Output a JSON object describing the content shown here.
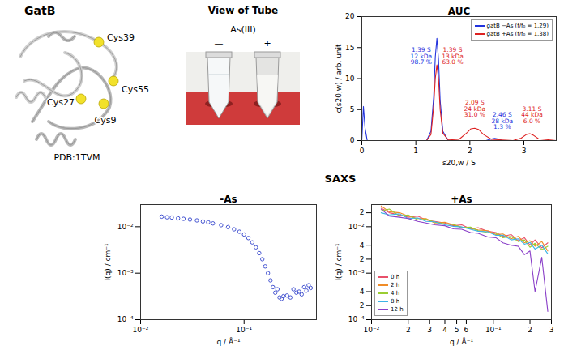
{
  "figure": {
    "structure": {
      "title": "GatB",
      "labels": [
        "Cys39",
        "Cys27",
        "Cys9",
        "Cys55"
      ],
      "caption": "PDB:1TVM"
    },
    "tube_photo": {
      "title": "View of Tube",
      "condition": "As(III)",
      "tubes": [
        "—",
        "+"
      ]
    },
    "saxs_title": "SAXS"
  },
  "chart_data": [
    {
      "type": "line",
      "title": "AUC",
      "x_label": "s20,w / S",
      "y_label": "c(s20,w) / arb. unit",
      "xlim": [
        0,
        3.6
      ],
      "ylim": [
        0,
        20
      ],
      "xticks": [
        0,
        1,
        2,
        3
      ],
      "yticks": [
        0,
        5,
        10,
        15,
        20
      ],
      "legend": "top-right",
      "series": [
        {
          "name": "gatB −As (f/f₀ = 1.29)",
          "color": "#2233dd",
          "x": [
            0,
            0.03,
            0.06,
            0.1,
            0.2,
            0.8,
            1.2,
            1.28,
            1.33,
            1.36,
            1.39,
            1.42,
            1.45,
            1.5,
            1.6,
            1.8,
            2.3,
            2.4,
            2.46,
            2.52,
            2.6,
            3.0,
            3.6
          ],
          "values": [
            0,
            5.5,
            2,
            0,
            0,
            0,
            0,
            1.5,
            7,
            13.5,
            16.5,
            13,
            6.5,
            1.5,
            0,
            0,
            0,
            0.25,
            0.35,
            0.25,
            0,
            0,
            0
          ]
        },
        {
          "name": "gatB +As (f/f₀ = 1.38)",
          "color": "#dd2222",
          "x": [
            0,
            0.5,
            1.2,
            1.28,
            1.33,
            1.36,
            1.39,
            1.42,
            1.45,
            1.5,
            1.6,
            1.8,
            1.95,
            2.02,
            2.09,
            2.16,
            2.25,
            2.4,
            2.8,
            2.95,
            3.05,
            3.11,
            3.17,
            3.27,
            3.6
          ],
          "values": [
            0,
            0,
            0,
            1,
            5.5,
            10,
            12.2,
            10,
            5,
            1.2,
            0.1,
            0.2,
            1.3,
            1.9,
            2.0,
            1.8,
            1.0,
            0.2,
            0,
            0.4,
            1.0,
            1.1,
            0.9,
            0.3,
            0
          ]
        }
      ],
      "annotations": [
        {
          "text": "1.39 S\n12 kDa\n98.7 %",
          "x": 1.1,
          "y": 15,
          "color": "#2233dd"
        },
        {
          "text": "1.39 S\n13 kDa\n63.0 %",
          "x": 1.68,
          "y": 15,
          "color": "#dd2222"
        },
        {
          "text": "2.09 S\n24 kDa\n31.0 %",
          "x": 2.09,
          "y": 6.5,
          "color": "#dd2222"
        },
        {
          "text": "2.46 S\n28 kDa\n1.3 %",
          "x": 2.6,
          "y": 4.5,
          "color": "#2233dd"
        },
        {
          "text": "3.11 S\n44 kDa\n6.0 %",
          "x": 3.15,
          "y": 5.5,
          "color": "#dd2222"
        }
      ]
    },
    {
      "type": "scatter",
      "title": "-As",
      "x_label": "q / Å⁻¹",
      "y_label": "I(q) / cm⁻¹",
      "log": true,
      "marker": "circle-open",
      "xlim": [
        0.01,
        0.5
      ],
      "ylim": [
        0.0001,
        0.03
      ],
      "xticks": [
        {
          "value": 0.01,
          "label": "10⁻²"
        },
        {
          "value": 0.1,
          "label": "10⁻¹"
        }
      ],
      "yticks": [
        {
          "value": 0.0001,
          "label": "10⁻⁴"
        },
        {
          "value": 0.001,
          "label": "10⁻³"
        },
        {
          "value": 0.01,
          "label": "10⁻²"
        }
      ],
      "series": [
        {
          "name": "-As",
          "color": "#3344cc",
          "x": [
            0.016,
            0.018,
            0.02,
            0.023,
            0.026,
            0.03,
            0.035,
            0.04,
            0.045,
            0.05,
            0.06,
            0.07,
            0.08,
            0.09,
            0.1,
            0.11,
            0.12,
            0.13,
            0.14,
            0.15,
            0.16,
            0.17,
            0.18,
            0.19,
            0.2,
            0.21,
            0.22,
            0.23,
            0.24,
            0.26,
            0.28,
            0.3,
            0.32,
            0.34,
            0.36,
            0.38,
            0.4,
            0.42,
            0.44
          ],
          "values": [
            0.0165,
            0.016,
            0.0158,
            0.0152,
            0.0148,
            0.0143,
            0.0137,
            0.013,
            0.0125,
            0.0118,
            0.0108,
            0.0098,
            0.0088,
            0.0078,
            0.0068,
            0.0057,
            0.0046,
            0.0036,
            0.0027,
            0.002,
            0.0014,
            0.001,
            0.0007,
            0.0005,
            0.00038,
            0.00045,
            0.0003,
            0.00028,
            0.00032,
            0.00033,
            0.0003,
            0.00045,
            0.00038,
            0.0004,
            0.00035,
            0.0005,
            0.00042,
            0.00055,
            0.00048
          ]
        }
      ]
    },
    {
      "type": "line",
      "title": "+As",
      "x_label": "q / Å⁻¹",
      "y_label": "I(q) / cm⁻¹",
      "log": true,
      "legend": "bottom-left",
      "xlim": [
        0.01,
        0.3
      ],
      "ylim": [
        0.0001,
        0.03
      ],
      "xticks": [
        {
          "value": 0.01,
          "label": "10⁻²"
        },
        {
          "value": 0.02,
          "label": "2"
        },
        {
          "value": 0.03,
          "label": "3"
        },
        {
          "value": 0.04,
          "label": "4"
        },
        {
          "value": 0.05,
          "label": "5"
        },
        {
          "value": 0.06,
          "label": "6"
        },
        {
          "value": 0.1,
          "label": "10⁻¹"
        },
        {
          "value": 0.2,
          "label": "2"
        },
        {
          "value": 0.3,
          "label": "3"
        }
      ],
      "yticks": [
        {
          "value": 0.0001,
          "label": "10⁻⁴"
        },
        {
          "value": 0.0002,
          "label": "2"
        },
        {
          "value": 0.0004,
          "label": "4"
        },
        {
          "value": 0.001,
          "label": "10⁻³"
        },
        {
          "value": 0.002,
          "label": "2"
        },
        {
          "value": 0.004,
          "label": "4"
        },
        {
          "value": 0.01,
          "label": "10⁻²"
        },
        {
          "value": 0.02,
          "label": "2"
        }
      ],
      "x": [
        0.012,
        0.014,
        0.017,
        0.02,
        0.024,
        0.028,
        0.033,
        0.04,
        0.047,
        0.055,
        0.065,
        0.075,
        0.09,
        0.105,
        0.12,
        0.14,
        0.16,
        0.18,
        0.2,
        0.22,
        0.25,
        0.28
      ],
      "series": [
        {
          "name": "0 h",
          "color": "#e8506a",
          "values": [
            0.025,
            0.02,
            0.018,
            0.016,
            0.017,
            0.014,
            0.013,
            0.012,
            0.0105,
            0.011,
            0.009,
            0.0095,
            0.008,
            0.0075,
            0.0062,
            0.0068,
            0.005,
            0.0058,
            0.004,
            0.0052,
            0.0035,
            0.0045
          ]
        },
        {
          "name": "2 h",
          "color": "#f08c28",
          "values": [
            0.028,
            0.021,
            0.02,
            0.017,
            0.015,
            0.015,
            0.012,
            0.0125,
            0.011,
            0.0098,
            0.0092,
            0.0085,
            0.0082,
            0.0068,
            0.007,
            0.0055,
            0.0062,
            0.0045,
            0.005,
            0.0038,
            0.0048,
            0.003
          ]
        },
        {
          "name": "4 h",
          "color": "#9acd32",
          "values": [
            0.022,
            0.024,
            0.017,
            0.018,
            0.014,
            0.0145,
            0.0125,
            0.0115,
            0.0112,
            0.0095,
            0.0098,
            0.0082,
            0.0075,
            0.0072,
            0.0058,
            0.0062,
            0.0048,
            0.0052,
            0.0036,
            0.0044,
            0.0032,
            0.0038
          ]
        },
        {
          "name": "8 h",
          "color": "#3cb4e6",
          "values": [
            0.02,
            0.018,
            0.019,
            0.015,
            0.0155,
            0.013,
            0.0128,
            0.011,
            0.0102,
            0.0099,
            0.0088,
            0.008,
            0.0078,
            0.0065,
            0.0066,
            0.0052,
            0.0055,
            0.0042,
            0.0046,
            0.0033,
            0.004,
            0.0026
          ]
        },
        {
          "name": "12 h",
          "color": "#8a3fc8",
          "values": [
            0.024,
            0.017,
            0.016,
            0.015,
            0.013,
            0.012,
            0.011,
            0.0105,
            0.009,
            0.0088,
            0.0075,
            0.0072,
            0.006,
            0.0058,
            0.0045,
            0.004,
            0.0038,
            0.0025,
            0.003,
            0.0004,
            0.0022,
            0.00015
          ]
        }
      ]
    }
  ]
}
